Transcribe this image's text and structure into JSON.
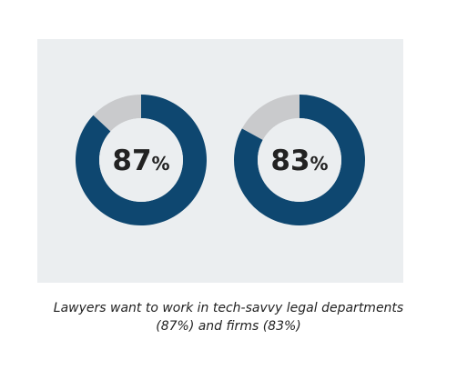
{
  "colors": {
    "filled": "#0e4770",
    "remainder": "#c9cacc",
    "panel": "#ebeef0",
    "text": "#222222"
  },
  "chart_data": [
    {
      "type": "pie",
      "variant": "donut",
      "values": [
        87,
        13
      ],
      "center_value": "87",
      "center_unit": "%"
    },
    {
      "type": "pie",
      "variant": "donut",
      "values": [
        83,
        17
      ],
      "center_value": "83",
      "center_unit": "%"
    }
  ],
  "caption": {
    "line1": "Lawyers want to work in tech-savvy legal departments",
    "line2": "(87%) and firms (83%)"
  }
}
